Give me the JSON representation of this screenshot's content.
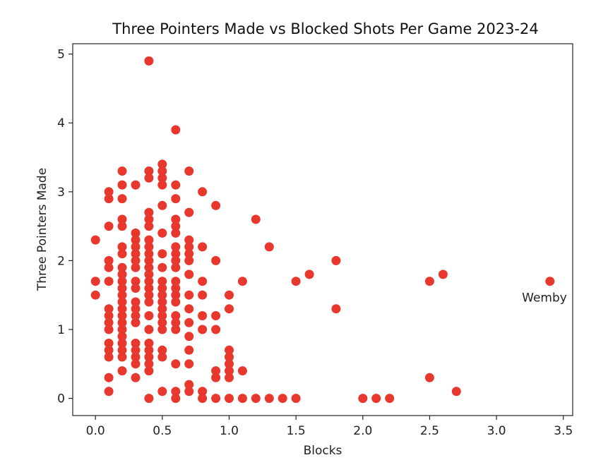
{
  "chart_data": {
    "type": "scatter",
    "title": "Three Pointers Made vs Blocked Shots Per Game 2023-24",
    "xlabel": "Blocks",
    "ylabel": "Three Pointers Made",
    "xlim": [
      -0.17,
      3.57
    ],
    "ylim": [
      -0.25,
      5.15
    ],
    "xticks": [
      0.0,
      0.5,
      1.0,
      1.5,
      2.0,
      2.5,
      3.0,
      3.5
    ],
    "xtick_labels": [
      "0.0",
      "0.5",
      "1.0",
      "1.5",
      "2.0",
      "2.5",
      "3.0",
      "3.5"
    ],
    "yticks": [
      0,
      1,
      2,
      3,
      4,
      5
    ],
    "ytick_labels": [
      "0",
      "1",
      "2",
      "3",
      "4",
      "5"
    ],
    "grid": false,
    "marker_color": "#e8372c",
    "annotations": [
      {
        "text": "Wemby",
        "x": 3.4,
        "y": 1.7
      }
    ],
    "points": [
      [
        0.0,
        2.3
      ],
      [
        0.0,
        1.7
      ],
      [
        0.0,
        1.5
      ],
      [
        0.1,
        3.0
      ],
      [
        0.1,
        2.9
      ],
      [
        0.1,
        2.5
      ],
      [
        0.1,
        2.0
      ],
      [
        0.1,
        1.9
      ],
      [
        0.1,
        1.7
      ],
      [
        0.1,
        1.3
      ],
      [
        0.1,
        1.2
      ],
      [
        0.1,
        1.1
      ],
      [
        0.1,
        1.0
      ],
      [
        0.1,
        0.8
      ],
      [
        0.1,
        0.7
      ],
      [
        0.1,
        0.6
      ],
      [
        0.1,
        0.3
      ],
      [
        0.1,
        0.1
      ],
      [
        0.2,
        3.3
      ],
      [
        0.2,
        3.1
      ],
      [
        0.2,
        2.9
      ],
      [
        0.2,
        2.6
      ],
      [
        0.2,
        2.5
      ],
      [
        0.2,
        2.2
      ],
      [
        0.2,
        2.1
      ],
      [
        0.2,
        1.9
      ],
      [
        0.2,
        1.8
      ],
      [
        0.2,
        1.7
      ],
      [
        0.2,
        1.6
      ],
      [
        0.2,
        1.5
      ],
      [
        0.2,
        1.4
      ],
      [
        0.2,
        1.3
      ],
      [
        0.2,
        1.2
      ],
      [
        0.2,
        1.1
      ],
      [
        0.2,
        1.0
      ],
      [
        0.2,
        0.9
      ],
      [
        0.2,
        0.8
      ],
      [
        0.2,
        0.7
      ],
      [
        0.2,
        0.6
      ],
      [
        0.2,
        0.4
      ],
      [
        0.3,
        3.1
      ],
      [
        0.3,
        2.4
      ],
      [
        0.3,
        2.3
      ],
      [
        0.3,
        2.2
      ],
      [
        0.3,
        2.1
      ],
      [
        0.3,
        2.0
      ],
      [
        0.3,
        1.9
      ],
      [
        0.3,
        1.7
      ],
      [
        0.3,
        1.6
      ],
      [
        0.3,
        1.4
      ],
      [
        0.3,
        1.3
      ],
      [
        0.3,
        1.2
      ],
      [
        0.3,
        1.1
      ],
      [
        0.3,
        0.8
      ],
      [
        0.3,
        0.7
      ],
      [
        0.3,
        0.6
      ],
      [
        0.3,
        0.5
      ],
      [
        0.3,
        0.3
      ],
      [
        0.4,
        4.9
      ],
      [
        0.4,
        3.3
      ],
      [
        0.4,
        3.2
      ],
      [
        0.4,
        2.7
      ],
      [
        0.4,
        2.6
      ],
      [
        0.4,
        2.5
      ],
      [
        0.4,
        2.3
      ],
      [
        0.4,
        2.2
      ],
      [
        0.4,
        2.1
      ],
      [
        0.4,
        2.0
      ],
      [
        0.4,
        1.9
      ],
      [
        0.4,
        1.8
      ],
      [
        0.4,
        1.7
      ],
      [
        0.4,
        1.6
      ],
      [
        0.4,
        1.5
      ],
      [
        0.4,
        1.4
      ],
      [
        0.4,
        1.2
      ],
      [
        0.4,
        1.0
      ],
      [
        0.4,
        0.8
      ],
      [
        0.4,
        0.7
      ],
      [
        0.4,
        0.6
      ],
      [
        0.4,
        0.5
      ],
      [
        0.4,
        0.4
      ],
      [
        0.4,
        0.0
      ],
      [
        0.5,
        3.4
      ],
      [
        0.5,
        3.3
      ],
      [
        0.5,
        3.2
      ],
      [
        0.5,
        3.1
      ],
      [
        0.5,
        2.8
      ],
      [
        0.5,
        2.4
      ],
      [
        0.5,
        2.1
      ],
      [
        0.5,
        1.9
      ],
      [
        0.5,
        1.7
      ],
      [
        0.5,
        1.6
      ],
      [
        0.5,
        1.5
      ],
      [
        0.5,
        1.4
      ],
      [
        0.5,
        1.3
      ],
      [
        0.5,
        1.2
      ],
      [
        0.5,
        1.1
      ],
      [
        0.5,
        1.0
      ],
      [
        0.5,
        0.7
      ],
      [
        0.5,
        0.6
      ],
      [
        0.5,
        0.1
      ],
      [
        0.6,
        3.9
      ],
      [
        0.6,
        3.1
      ],
      [
        0.6,
        2.9
      ],
      [
        0.6,
        2.6
      ],
      [
        0.6,
        2.5
      ],
      [
        0.6,
        2.4
      ],
      [
        0.6,
        2.2
      ],
      [
        0.6,
        2.1
      ],
      [
        0.6,
        2.0
      ],
      [
        0.6,
        1.9
      ],
      [
        0.6,
        1.7
      ],
      [
        0.6,
        1.6
      ],
      [
        0.6,
        1.5
      ],
      [
        0.6,
        1.4
      ],
      [
        0.6,
        1.2
      ],
      [
        0.6,
        1.1
      ],
      [
        0.6,
        1.0
      ],
      [
        0.6,
        0.5
      ],
      [
        0.6,
        0.1
      ],
      [
        0.6,
        0.0
      ],
      [
        0.7,
        3.3
      ],
      [
        0.7,
        2.7
      ],
      [
        0.7,
        2.3
      ],
      [
        0.7,
        2.2
      ],
      [
        0.7,
        2.1
      ],
      [
        0.7,
        2.0
      ],
      [
        0.7,
        1.8
      ],
      [
        0.7,
        1.5
      ],
      [
        0.7,
        1.3
      ],
      [
        0.7,
        1.1
      ],
      [
        0.7,
        0.9
      ],
      [
        0.7,
        0.7
      ],
      [
        0.7,
        0.5
      ],
      [
        0.7,
        0.2
      ],
      [
        0.7,
        0.1
      ],
      [
        0.8,
        3.0
      ],
      [
        0.8,
        2.2
      ],
      [
        0.8,
        1.7
      ],
      [
        0.8,
        1.5
      ],
      [
        0.8,
        1.2
      ],
      [
        0.8,
        1.0
      ],
      [
        0.8,
        0.1
      ],
      [
        0.8,
        0.0
      ],
      [
        0.9,
        2.8
      ],
      [
        0.9,
        2.0
      ],
      [
        0.9,
        1.2
      ],
      [
        0.9,
        1.0
      ],
      [
        0.9,
        0.4
      ],
      [
        0.9,
        0.3
      ],
      [
        0.9,
        0.0
      ],
      [
        1.0,
        1.5
      ],
      [
        1.0,
        1.3
      ],
      [
        1.0,
        0.7
      ],
      [
        1.0,
        0.6
      ],
      [
        1.0,
        0.5
      ],
      [
        1.0,
        0.4
      ],
      [
        1.0,
        0.3
      ],
      [
        1.0,
        0.0
      ],
      [
        1.1,
        1.7
      ],
      [
        1.1,
        0.4
      ],
      [
        1.1,
        0.0
      ],
      [
        1.2,
        2.6
      ],
      [
        1.2,
        0.0
      ],
      [
        1.3,
        2.2
      ],
      [
        1.3,
        0.0
      ],
      [
        1.4,
        0.0
      ],
      [
        1.5,
        1.7
      ],
      [
        1.5,
        0.0
      ],
      [
        1.6,
        1.8
      ],
      [
        1.8,
        2.0
      ],
      [
        1.8,
        1.3
      ],
      [
        2.0,
        0.0
      ],
      [
        2.1,
        0.0
      ],
      [
        2.2,
        0.0
      ],
      [
        2.5,
        1.7
      ],
      [
        2.5,
        0.3
      ],
      [
        2.6,
        1.8
      ],
      [
        2.7,
        0.1
      ],
      [
        3.4,
        1.7
      ]
    ]
  }
}
